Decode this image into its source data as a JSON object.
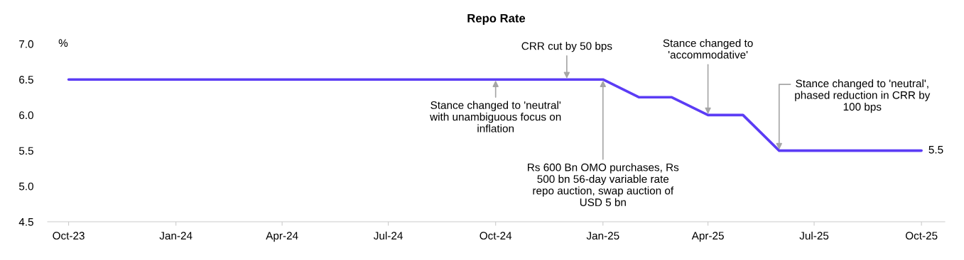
{
  "chart_data": {
    "type": "line",
    "title": "Repo Rate",
    "ylabel": "%",
    "x": [
      "2023-10",
      "2023-11",
      "2023-12",
      "2024-01",
      "2024-02",
      "2024-03",
      "2024-04",
      "2024-05",
      "2024-06",
      "2024-07",
      "2024-08",
      "2024-09",
      "2024-10",
      "2024-11",
      "2024-12",
      "2025-01",
      "2025-02",
      "2025-03",
      "2025-04",
      "2025-05",
      "2025-06",
      "2025-07",
      "2025-08",
      "2025-09",
      "2025-10"
    ],
    "series": [
      {
        "color": "#5b3cf5",
        "values": [
          6.5,
          6.5,
          6.5,
          6.5,
          6.5,
          6.5,
          6.5,
          6.5,
          6.5,
          6.5,
          6.5,
          6.5,
          6.5,
          6.5,
          6.5,
          6.5,
          6.25,
          6.25,
          6.0,
          6.0,
          5.5,
          5.5,
          5.5,
          5.5,
          5.5
        ],
        "value_labels": [
          null,
          null,
          null,
          null,
          null,
          null,
          null,
          null,
          null,
          null,
          null,
          null,
          null,
          null,
          null,
          null,
          null,
          null,
          null,
          null,
          null,
          null,
          null,
          null,
          "5.5"
        ]
      }
    ],
    "xlim": [
      "2023-09-13",
      "2025-10-21"
    ],
    "xticks": [
      {
        "value": "2023-10",
        "label": "Oct-23"
      },
      {
        "value": "2024-01",
        "label": "Jan-24"
      },
      {
        "value": "2024-04",
        "label": "Apr-24"
      },
      {
        "value": "2024-07",
        "label": "Jul-24"
      },
      {
        "value": "2024-10",
        "label": "Oct-24"
      },
      {
        "value": "2025-01",
        "label": "Jan-25"
      },
      {
        "value": "2025-04",
        "label": "Apr-25"
      },
      {
        "value": "2025-07",
        "label": "Jul-25"
      },
      {
        "value": "2025-10",
        "label": "Oct-25"
      }
    ],
    "ylim": [
      4.5,
      7.0
    ],
    "yticks": [
      {
        "value": 4.5,
        "label": "4.5"
      },
      {
        "value": 5.0,
        "label": "5.0"
      },
      {
        "value": 5.5,
        "label": "5.5"
      },
      {
        "value": 6.0,
        "label": "6.0"
      },
      {
        "value": 6.5,
        "label": "6.5"
      },
      {
        "value": 7.0,
        "label": "7.0"
      }
    ],
    "grid": false,
    "legend": false,
    "marker": "none",
    "line_style": "solid",
    "annotations": [
      {
        "text": "Stance changed to 'neutral'\nwith unambiguous focus on\ninflation",
        "x": "2024-10",
        "y": 6.5
      },
      {
        "text": "CRR cut by 50 bps",
        "x": "2024-12",
        "y": 6.5
      },
      {
        "text": "Rs 600 Bn OMO purchases, Rs\n500 bn 56-day variable rate\nrepo auction, swap auction of\nUSD 5 bn",
        "x": "2025-01",
        "y": 6.5
      },
      {
        "text": "Stance changed to\n'accommodative'",
        "x": "2025-04",
        "y": 6.0
      },
      {
        "text": "Stance changed to 'neutral',\nphased reduction in CRR by\n100 bps",
        "x": "2025-06",
        "y": 5.5
      }
    ]
  }
}
